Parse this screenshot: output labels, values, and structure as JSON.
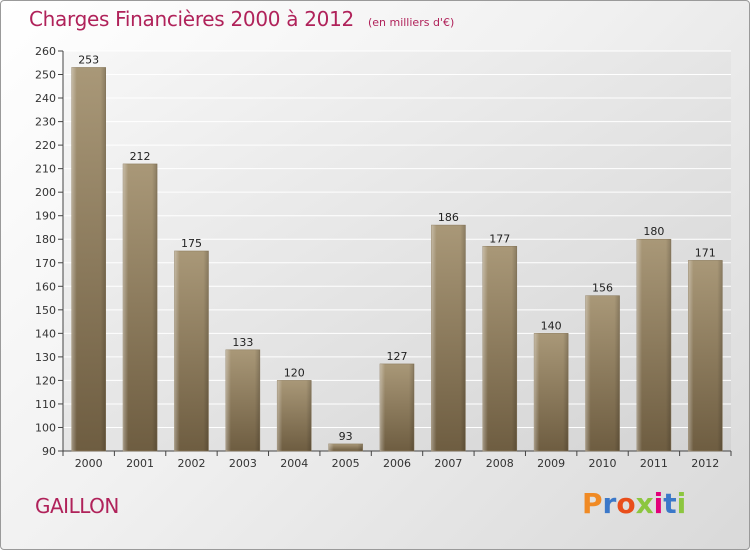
{
  "header": {
    "title": "Charges Financières 2000 à 2012",
    "subtitle": "(en milliers d'€)"
  },
  "footer": {
    "city": "GAILLON",
    "logo_text": "Proxiti",
    "logo_colors": [
      "#f08a24",
      "#3b78c9",
      "#e94e1b",
      "#8cc63f",
      "#e2007a",
      "#3b78c9",
      "#8cc63f"
    ]
  },
  "colors": {
    "title": "#b0225a",
    "bar_top": "#a99878",
    "bar_bottom": "#6e5d41",
    "plot_bg_top": "#f7f7f7",
    "plot_bg_bottom": "#d6d6d6",
    "grid": "#ffffff"
  },
  "chart_data": {
    "type": "bar",
    "title": "Charges Financières 2000 à 2012",
    "subtitle": "(en milliers d'€)",
    "categories": [
      "2000",
      "2001",
      "2002",
      "2003",
      "2004",
      "2005",
      "2006",
      "2007",
      "2008",
      "2009",
      "2010",
      "2011",
      "2012"
    ],
    "values": [
      253,
      212,
      175,
      133,
      120,
      93,
      127,
      186,
      177,
      140,
      156,
      180,
      171
    ],
    "ylim": [
      90,
      260
    ],
    "yticks": [
      90,
      100,
      110,
      120,
      130,
      140,
      150,
      160,
      170,
      180,
      190,
      200,
      210,
      220,
      230,
      240,
      250,
      260
    ],
    "grid": true,
    "data_labels": true
  }
}
